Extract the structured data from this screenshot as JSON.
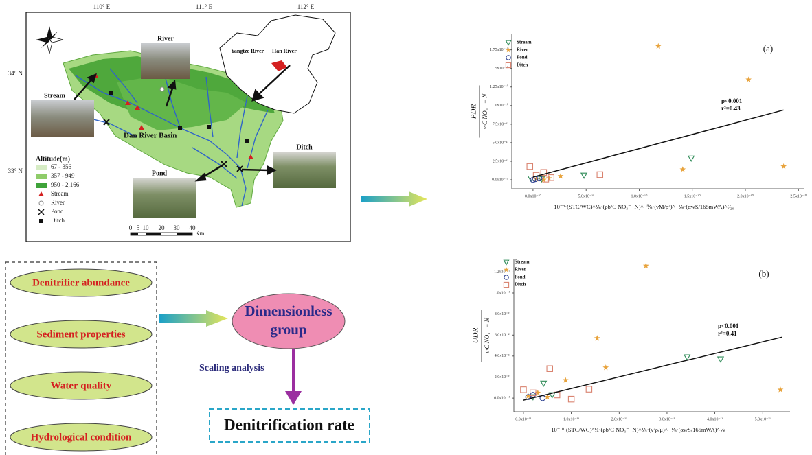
{
  "map": {
    "lon_labels": [
      "110° E",
      "111° E",
      "112° E"
    ],
    "lat_labels": [
      "34° N",
      "33° N"
    ],
    "photo_labels": {
      "river": "River",
      "stream": "Stream",
      "ditch": "Ditch",
      "pond": "Pond"
    },
    "basin_label": "Dan River Basin",
    "inset_labels": [
      "Yangtze River",
      "Han River"
    ],
    "legend_title": "Altitude(m)",
    "legend_items": [
      "67 - 356",
      "357 - 949",
      "950 - 2,166",
      "Stream",
      "River",
      "Pond",
      "Ditch"
    ],
    "scale_labels": [
      "0",
      "5",
      "10",
      "20",
      "30",
      "40"
    ],
    "scale_unit": "Km"
  },
  "factors": [
    "Denitrifier abundance",
    "Sediment properties",
    "Water quality",
    "Hydrological condition"
  ],
  "group": [
    "Dimensionless",
    "group"
  ],
  "method": "Scaling analysis",
  "result": "Denitrification rate",
  "charts": [
    {
      "type": "scatter",
      "panel": "(a)",
      "ylabel_top": "PDR",
      "ylabel_bottom": "ν·C NO₃⁻ − N",
      "xlabel": "10⁻⁹·(STC/WC)^⅙·(ρb/C NO₃⁻−N)^−⅚·(νM/ρ²)^−⅙·(αwS/165mWA)^⁷⁄₂₀",
      "xlim": [
        -2e-11,
        2.55e-10
      ],
      "ylim": [
        -1.2e-11,
        1.96e-10
      ],
      "xticks": [
        {
          "value": 0,
          "label": "0.0x10⁻¹⁰"
        },
        {
          "value": 5e-11,
          "label": "5.0x10⁻¹¹"
        },
        {
          "value": 1e-10,
          "label": "1.0x10⁻¹⁰"
        },
        {
          "value": 1.5e-10,
          "label": "1.5x10⁻¹⁰"
        },
        {
          "value": 2e-10,
          "label": "2.0x10⁻¹⁰"
        },
        {
          "value": 2.5e-10,
          "label": "2.5x10⁻¹⁰"
        }
      ],
      "yticks": [
        {
          "value": 0,
          "label": "0.0x10⁻¹⁰"
        },
        {
          "value": 2.5e-11,
          "label": "2.5x10⁻¹¹"
        },
        {
          "value": 5e-11,
          "label": "5.0x10⁻¹¹"
        },
        {
          "value": 7.5e-11,
          "label": "7.5x10⁻¹¹"
        },
        {
          "value": 1e-10,
          "label": "1.0x10⁻¹⁰"
        },
        {
          "value": 1.25e-10,
          "label": "1.25x10⁻¹⁰"
        },
        {
          "value": 1.5e-10,
          "label": "1.5x10⁻¹⁰"
        },
        {
          "value": 1.75e-10,
          "label": "1.75x10⁻¹⁰"
        }
      ],
      "series": [
        {
          "name": "Stream",
          "color": "#2e8b57",
          "marker": "triangle",
          "x": [
            4.8e-11,
            1.49e-10,
            -2e-12,
            8e-12
          ],
          "y": [
            6e-12,
            2.9e-11,
            2e-12,
            1e-12
          ]
        },
        {
          "name": "River",
          "color": "#e8a33c",
          "marker": "star",
          "x": [
            1.18e-10,
            2.03e-10,
            1.41e-10,
            2.36e-10,
            1.5e-11,
            2.6e-11,
            1e-11,
            3e-12
          ],
          "y": [
            1.8e-10,
            1.35e-10,
            1.4e-11,
            1.8e-11,
            2e-12,
            5e-12,
            0,
            1e-12
          ]
        },
        {
          "name": "Pond",
          "color": "#2b3f8f",
          "marker": "circle",
          "x": [
            2e-12,
            6e-12,
            0
          ],
          "y": [
            1e-12,
            2e-12,
            0
          ]
        },
        {
          "name": "Ditch",
          "color": "#d9826e",
          "marker": "square",
          "x": [
            -3e-12,
            1e-11,
            6.3e-11,
            1.7e-11,
            3e-12,
            1.2e-11
          ],
          "y": [
            1.8e-11,
            1e-11,
            7e-12,
            3e-12,
            6e-12,
            1e-12
          ]
        }
      ],
      "fit": {
        "x": [
          0,
          2.36e-10
        ],
        "y": [
          3.7e-12,
          9.4e-11
        ]
      },
      "annotations": [
        "p<0.001",
        "r²=0.43"
      ]
    },
    {
      "type": "scatter",
      "panel": "(b)",
      "ylabel_top": "UDR",
      "ylabel_bottom": "ν·C NO₃⁻ − N",
      "xlabel": "10⁻¹⁰·(STC/WC)^¼·(ρb/C NO₃⁻−N)^⅕·(ν²ρ/μ)^−⅙·(αwS/165mWA)^⅙",
      "xlim": [
        -2e-12,
        5.57e-11
      ],
      "ylim": [
        -1.3e-11,
        1.32e-10
      ],
      "xticks": [
        {
          "value": 0,
          "label": "0.0x10⁻¹¹"
        },
        {
          "value": 1e-11,
          "label": "1.0x10⁻¹¹"
        },
        {
          "value": 2e-11,
          "label": "2.0x10⁻¹¹"
        },
        {
          "value": 3e-11,
          "label": "3.0x10⁻¹¹"
        },
        {
          "value": 4e-11,
          "label": "4.0x10⁻¹¹"
        },
        {
          "value": 5e-11,
          "label": "5.0x10⁻¹¹"
        }
      ],
      "yticks": [
        {
          "value": 0,
          "label": "0.0x10⁻¹⁰"
        },
        {
          "value": 2e-11,
          "label": "2.0x10⁻¹¹"
        },
        {
          "value": 4e-11,
          "label": "4.0x10⁻¹¹"
        },
        {
          "value": 6e-11,
          "label": "6.0x10⁻¹¹"
        },
        {
          "value": 8e-11,
          "label": "8.0x10⁻¹¹"
        },
        {
          "value": 1e-10,
          "label": "1.0x10⁻¹⁰"
        },
        {
          "value": 1.2e-10,
          "label": "1.2x10⁻¹⁰"
        }
      ],
      "series": [
        {
          "name": "Stream",
          "color": "#2e8b57",
          "marker": "triangle",
          "x": [
            3.42e-11,
            4.12e-11,
            4.2e-12,
            2e-12,
            6e-12
          ],
          "y": [
            3.9e-11,
            3.7e-11,
            1.4e-11,
            1e-12,
            3e-12
          ]
        },
        {
          "name": "River",
          "color": "#e8a33c",
          "marker": "star",
          "x": [
            2.56e-11,
            1.54e-11,
            1.72e-11,
            8.8e-12,
            5.37e-11,
            1e-12,
            3e-12,
            5e-12
          ],
          "y": [
            1.26e-10,
            5.7e-11,
            2.9e-11,
            1.7e-11,
            8e-12,
            2e-12,
            5e-12,
            1e-12
          ]
        },
        {
          "name": "Pond",
          "color": "#2b3f8f",
          "marker": "circle",
          "x": [
            1e-12,
            2e-12,
            4e-12
          ],
          "y": [
            1e-12,
            3e-12,
            0
          ]
        },
        {
          "name": "Ditch",
          "color": "#d9826e",
          "marker": "square",
          "x": [
            5.5e-12,
            1.37e-11,
            1e-11,
            0,
            2e-12,
            7e-12
          ],
          "y": [
            2.8e-11,
            8.5e-12,
            -1e-12,
            8e-12,
            5e-12,
            3e-12
          ]
        }
      ],
      "fit": {
        "x": [
          0,
          5.4e-11
        ],
        "y": [
          -2e-12,
          5.8e-11
        ]
      },
      "annotations": [
        "p<0.001",
        "r²=0.41"
      ]
    }
  ]
}
